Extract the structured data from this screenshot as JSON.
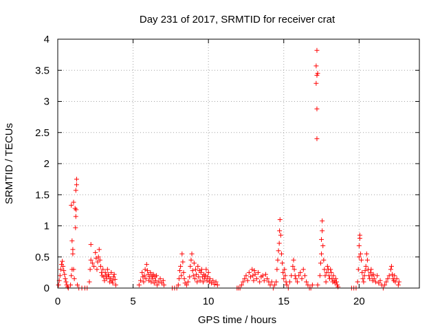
{
  "chart_data": {
    "type": "scatter",
    "title": "Day 231 of 2017, SRMTID for receiver crat",
    "xlabel": "GPS time / hours",
    "ylabel": "SRMTID / TECUs",
    "xlim": [
      0,
      24
    ],
    "ylim": [
      0,
      4
    ],
    "x_ticks": [
      0,
      5,
      10,
      15,
      20
    ],
    "x_tick_labels": [
      "0",
      "5",
      "10",
      "15",
      "20"
    ],
    "y_ticks": [
      0,
      0.5,
      1,
      1.5,
      2,
      2.5,
      3,
      3.5,
      4
    ],
    "y_tick_labels": [
      "0",
      "0.5",
      "1",
      "1.5",
      "2",
      "2.5",
      "3",
      "3.5",
      "4"
    ],
    "grid": true,
    "marker": "+",
    "series_color": "#ff0000",
    "series": [
      {
        "name": "SRMTID",
        "points": [
          [
            0.05,
            0.05
          ],
          [
            0.1,
            0.12
          ],
          [
            0.15,
            0.2
          ],
          [
            0.2,
            0.3
          ],
          [
            0.25,
            0.38
          ],
          [
            0.3,
            0.43
          ],
          [
            0.35,
            0.35
          ],
          [
            0.4,
            0.28
          ],
          [
            0.45,
            0.22
          ],
          [
            0.5,
            0.15
          ],
          [
            0.55,
            0.1
          ],
          [
            0.6,
            0.05
          ],
          [
            0.65,
            0.02
          ],
          [
            0.7,
            0.0
          ],
          [
            0.85,
            0.05
          ],
          [
            0.9,
            0.2
          ],
          [
            0.95,
            0.3
          ],
          [
            1.0,
            0.55
          ],
          [
            1.0,
            0.62
          ],
          [
            0.95,
            0.76
          ],
          [
            1.05,
            0.3
          ],
          [
            1.1,
            0.15
          ],
          [
            0.9,
            1.33
          ],
          [
            1.05,
            1.38
          ],
          [
            1.15,
            1.28
          ],
          [
            1.18,
            0.97
          ],
          [
            1.2,
            1.15
          ],
          [
            1.22,
            1.26
          ],
          [
            1.2,
            1.57
          ],
          [
            1.25,
            1.66
          ],
          [
            1.25,
            1.75
          ],
          [
            1.3,
            0.05
          ],
          [
            1.4,
            0.0
          ],
          [
            1.6,
            0.0
          ],
          [
            1.8,
            0.0
          ],
          [
            1.95,
            0.0
          ],
          [
            2.1,
            0.1
          ],
          [
            2.15,
            0.3
          ],
          [
            2.2,
            0.45
          ],
          [
            2.2,
            0.7
          ],
          [
            2.3,
            0.4
          ],
          [
            2.4,
            0.35
          ],
          [
            2.5,
            0.57
          ],
          [
            2.55,
            0.48
          ],
          [
            2.6,
            0.3
          ],
          [
            2.65,
            0.42
          ],
          [
            2.7,
            0.5
          ],
          [
            2.75,
            0.62
          ],
          [
            2.8,
            0.45
          ],
          [
            2.85,
            0.35
          ],
          [
            2.9,
            0.25
          ],
          [
            2.95,
            0.2
          ],
          [
            3.0,
            0.3
          ],
          [
            3.05,
            0.18
          ],
          [
            3.1,
            0.12
          ],
          [
            3.15,
            0.25
          ],
          [
            3.2,
            0.2
          ],
          [
            3.25,
            0.15
          ],
          [
            3.3,
            0.3
          ],
          [
            3.35,
            0.22
          ],
          [
            3.4,
            0.18
          ],
          [
            3.45,
            0.1
          ],
          [
            3.5,
            0.15
          ],
          [
            3.55,
            0.25
          ],
          [
            3.6,
            0.12
          ],
          [
            3.65,
            0.08
          ],
          [
            3.7,
            0.18
          ],
          [
            3.75,
            0.22
          ],
          [
            3.8,
            0.14
          ],
          [
            3.85,
            0.05
          ],
          [
            5.4,
            0.05
          ],
          [
            5.5,
            0.12
          ],
          [
            5.6,
            0.25
          ],
          [
            5.65,
            0.18
          ],
          [
            5.7,
            0.1
          ],
          [
            5.75,
            0.2
          ],
          [
            5.8,
            0.3
          ],
          [
            5.85,
            0.15
          ],
          [
            5.9,
            0.38
          ],
          [
            5.95,
            0.28
          ],
          [
            6.0,
            0.22
          ],
          [
            6.05,
            0.12
          ],
          [
            6.1,
            0.18
          ],
          [
            6.15,
            0.25
          ],
          [
            6.2,
            0.1
          ],
          [
            6.25,
            0.2
          ],
          [
            6.3,
            0.15
          ],
          [
            6.35,
            0.22
          ],
          [
            6.4,
            0.08
          ],
          [
            6.45,
            0.18
          ],
          [
            6.5,
            0.12
          ],
          [
            6.55,
            0.2
          ],
          [
            6.6,
            0.05
          ],
          [
            6.7,
            0.1
          ],
          [
            6.8,
            0.15
          ],
          [
            6.9,
            0.08
          ],
          [
            7.0,
            0.12
          ],
          [
            7.05,
            0.05
          ],
          [
            7.6,
            0.0
          ],
          [
            7.75,
            0.0
          ],
          [
            7.9,
            0.0
          ],
          [
            8.0,
            0.05
          ],
          [
            8.05,
            0.15
          ],
          [
            8.1,
            0.28
          ],
          [
            8.15,
            0.35
          ],
          [
            8.2,
            0.2
          ],
          [
            8.25,
            0.55
          ],
          [
            8.3,
            0.42
          ],
          [
            8.35,
            0.25
          ],
          [
            8.4,
            0.15
          ],
          [
            8.45,
            0.08
          ],
          [
            8.55,
            0.05
          ],
          [
            8.65,
            0.1
          ],
          [
            8.75,
            0.18
          ],
          [
            8.8,
            0.35
          ],
          [
            8.85,
            0.45
          ],
          [
            8.9,
            0.55
          ],
          [
            8.95,
            0.28
          ],
          [
            9.0,
            0.2
          ],
          [
            9.05,
            0.4
          ],
          [
            9.1,
            0.15
          ],
          [
            9.15,
            0.3
          ],
          [
            9.2,
            0.22
          ],
          [
            9.25,
            0.1
          ],
          [
            9.3,
            0.35
          ],
          [
            9.35,
            0.18
          ],
          [
            9.4,
            0.28
          ],
          [
            9.45,
            0.12
          ],
          [
            9.5,
            0.25
          ],
          [
            9.55,
            0.3
          ],
          [
            9.6,
            0.18
          ],
          [
            9.65,
            0.1
          ],
          [
            9.7,
            0.22
          ],
          [
            9.75,
            0.15
          ],
          [
            9.8,
            0.2
          ],
          [
            9.85,
            0.3
          ],
          [
            9.9,
            0.12
          ],
          [
            9.95,
            0.18
          ],
          [
            10.0,
            0.25
          ],
          [
            10.05,
            0.1
          ],
          [
            10.1,
            0.15
          ],
          [
            10.2,
            0.08
          ],
          [
            10.3,
            0.12
          ],
          [
            10.4,
            0.06
          ],
          [
            10.5,
            0.1
          ],
          [
            10.6,
            0.05
          ],
          [
            11.9,
            0.0
          ],
          [
            12.0,
            0.0
          ],
          [
            12.1,
            0.0
          ],
          [
            12.2,
            0.05
          ],
          [
            12.3,
            0.1
          ],
          [
            12.4,
            0.15
          ],
          [
            12.5,
            0.2
          ],
          [
            12.6,
            0.12
          ],
          [
            12.7,
            0.25
          ],
          [
            12.8,
            0.18
          ],
          [
            12.9,
            0.3
          ],
          [
            12.95,
            0.2
          ],
          [
            13.0,
            0.12
          ],
          [
            13.05,
            0.28
          ],
          [
            13.1,
            0.22
          ],
          [
            13.2,
            0.15
          ],
          [
            13.3,
            0.25
          ],
          [
            13.4,
            0.1
          ],
          [
            13.5,
            0.18
          ],
          [
            13.6,
            0.2
          ],
          [
            13.7,
            0.12
          ],
          [
            13.8,
            0.22
          ],
          [
            13.9,
            0.15
          ],
          [
            14.0,
            0.1
          ],
          [
            14.1,
            0.05
          ],
          [
            14.2,
            0.1
          ],
          [
            14.3,
            0.0
          ],
          [
            14.4,
            0.05
          ],
          [
            14.5,
            0.1
          ],
          [
            14.55,
            0.3
          ],
          [
            14.6,
            0.45
          ],
          [
            14.65,
            0.6
          ],
          [
            14.7,
            0.72
          ],
          [
            14.72,
            0.92
          ],
          [
            14.75,
            1.1
          ],
          [
            14.8,
            0.85
          ],
          [
            14.85,
            0.55
          ],
          [
            14.9,
            0.4
          ],
          [
            14.95,
            0.25
          ],
          [
            15.0,
            0.15
          ],
          [
            15.05,
            0.3
          ],
          [
            15.1,
            0.2
          ],
          [
            15.15,
            0.1
          ],
          [
            15.2,
            0.05
          ],
          [
            15.3,
            0.0
          ],
          [
            15.4,
            0.1
          ],
          [
            15.5,
            0.2
          ],
          [
            15.6,
            0.35
          ],
          [
            15.65,
            0.45
          ],
          [
            15.7,
            0.3
          ],
          [
            15.75,
            0.2
          ],
          [
            15.8,
            0.15
          ],
          [
            15.9,
            0.1
          ],
          [
            16.0,
            0.2
          ],
          [
            16.1,
            0.25
          ],
          [
            16.2,
            0.15
          ],
          [
            16.3,
            0.3
          ],
          [
            16.4,
            0.2
          ],
          [
            16.5,
            0.1
          ],
          [
            16.6,
            0.05
          ],
          [
            16.7,
            0.0
          ],
          [
            16.8,
            0.0
          ],
          [
            16.9,
            0.05
          ],
          [
            17.2,
            2.4
          ],
          [
            17.2,
            2.88
          ],
          [
            17.15,
            3.29
          ],
          [
            17.2,
            3.42
          ],
          [
            17.25,
            3.45
          ],
          [
            17.15,
            3.57
          ],
          [
            17.2,
            3.82
          ],
          [
            17.25,
            0.05
          ],
          [
            17.4,
            0.2
          ],
          [
            17.45,
            0.4
          ],
          [
            17.5,
            0.55
          ],
          [
            17.5,
            0.78
          ],
          [
            17.55,
            1.08
          ],
          [
            17.55,
            0.92
          ],
          [
            17.6,
            0.68
          ],
          [
            17.65,
            0.45
          ],
          [
            17.7,
            0.3
          ],
          [
            17.75,
            0.2
          ],
          [
            17.8,
            0.1
          ],
          [
            17.85,
            0.25
          ],
          [
            17.9,
            0.35
          ],
          [
            17.95,
            0.3
          ],
          [
            18.0,
            0.2
          ],
          [
            18.05,
            0.15
          ],
          [
            18.1,
            0.3
          ],
          [
            18.15,
            0.25
          ],
          [
            18.2,
            0.15
          ],
          [
            18.25,
            0.1
          ],
          [
            18.3,
            0.2
          ],
          [
            18.35,
            0.12
          ],
          [
            18.4,
            0.08
          ],
          [
            18.45,
            0.15
          ],
          [
            18.5,
            0.1
          ],
          [
            18.55,
            0.05
          ],
          [
            18.6,
            0.02
          ],
          [
            19.5,
            0.0
          ],
          [
            19.65,
            0.0
          ],
          [
            19.8,
            0.0
          ],
          [
            19.9,
            0.1
          ],
          [
            19.95,
            0.3
          ],
          [
            20.0,
            0.5
          ],
          [
            20.0,
            0.68
          ],
          [
            20.05,
            0.8
          ],
          [
            20.05,
            0.85
          ],
          [
            20.1,
            0.55
          ],
          [
            20.15,
            0.45
          ],
          [
            20.2,
            0.25
          ],
          [
            20.25,
            0.15
          ],
          [
            20.3,
            0.1
          ],
          [
            20.35,
            0.2
          ],
          [
            20.4,
            0.28
          ],
          [
            20.45,
            0.35
          ],
          [
            20.5,
            0.55
          ],
          [
            20.55,
            0.45
          ],
          [
            20.6,
            0.3
          ],
          [
            20.65,
            0.2
          ],
          [
            20.7,
            0.15
          ],
          [
            20.75,
            0.25
          ],
          [
            20.8,
            0.3
          ],
          [
            20.85,
            0.2
          ],
          [
            20.9,
            0.12
          ],
          [
            20.95,
            0.22
          ],
          [
            21.0,
            0.15
          ],
          [
            21.1,
            0.1
          ],
          [
            21.2,
            0.2
          ],
          [
            21.3,
            0.08
          ],
          [
            21.4,
            0.12
          ],
          [
            21.5,
            0.05
          ],
          [
            21.6,
            0.0
          ],
          [
            21.7,
            0.05
          ],
          [
            21.8,
            0.1
          ],
          [
            21.9,
            0.15
          ],
          [
            22.0,
            0.2
          ],
          [
            22.1,
            0.3
          ],
          [
            22.15,
            0.35
          ],
          [
            22.2,
            0.22
          ],
          [
            22.25,
            0.15
          ],
          [
            22.3,
            0.12
          ],
          [
            22.35,
            0.2
          ],
          [
            22.4,
            0.1
          ],
          [
            22.5,
            0.15
          ],
          [
            22.6,
            0.05
          ],
          [
            22.65,
            0.1
          ]
        ]
      }
    ]
  }
}
